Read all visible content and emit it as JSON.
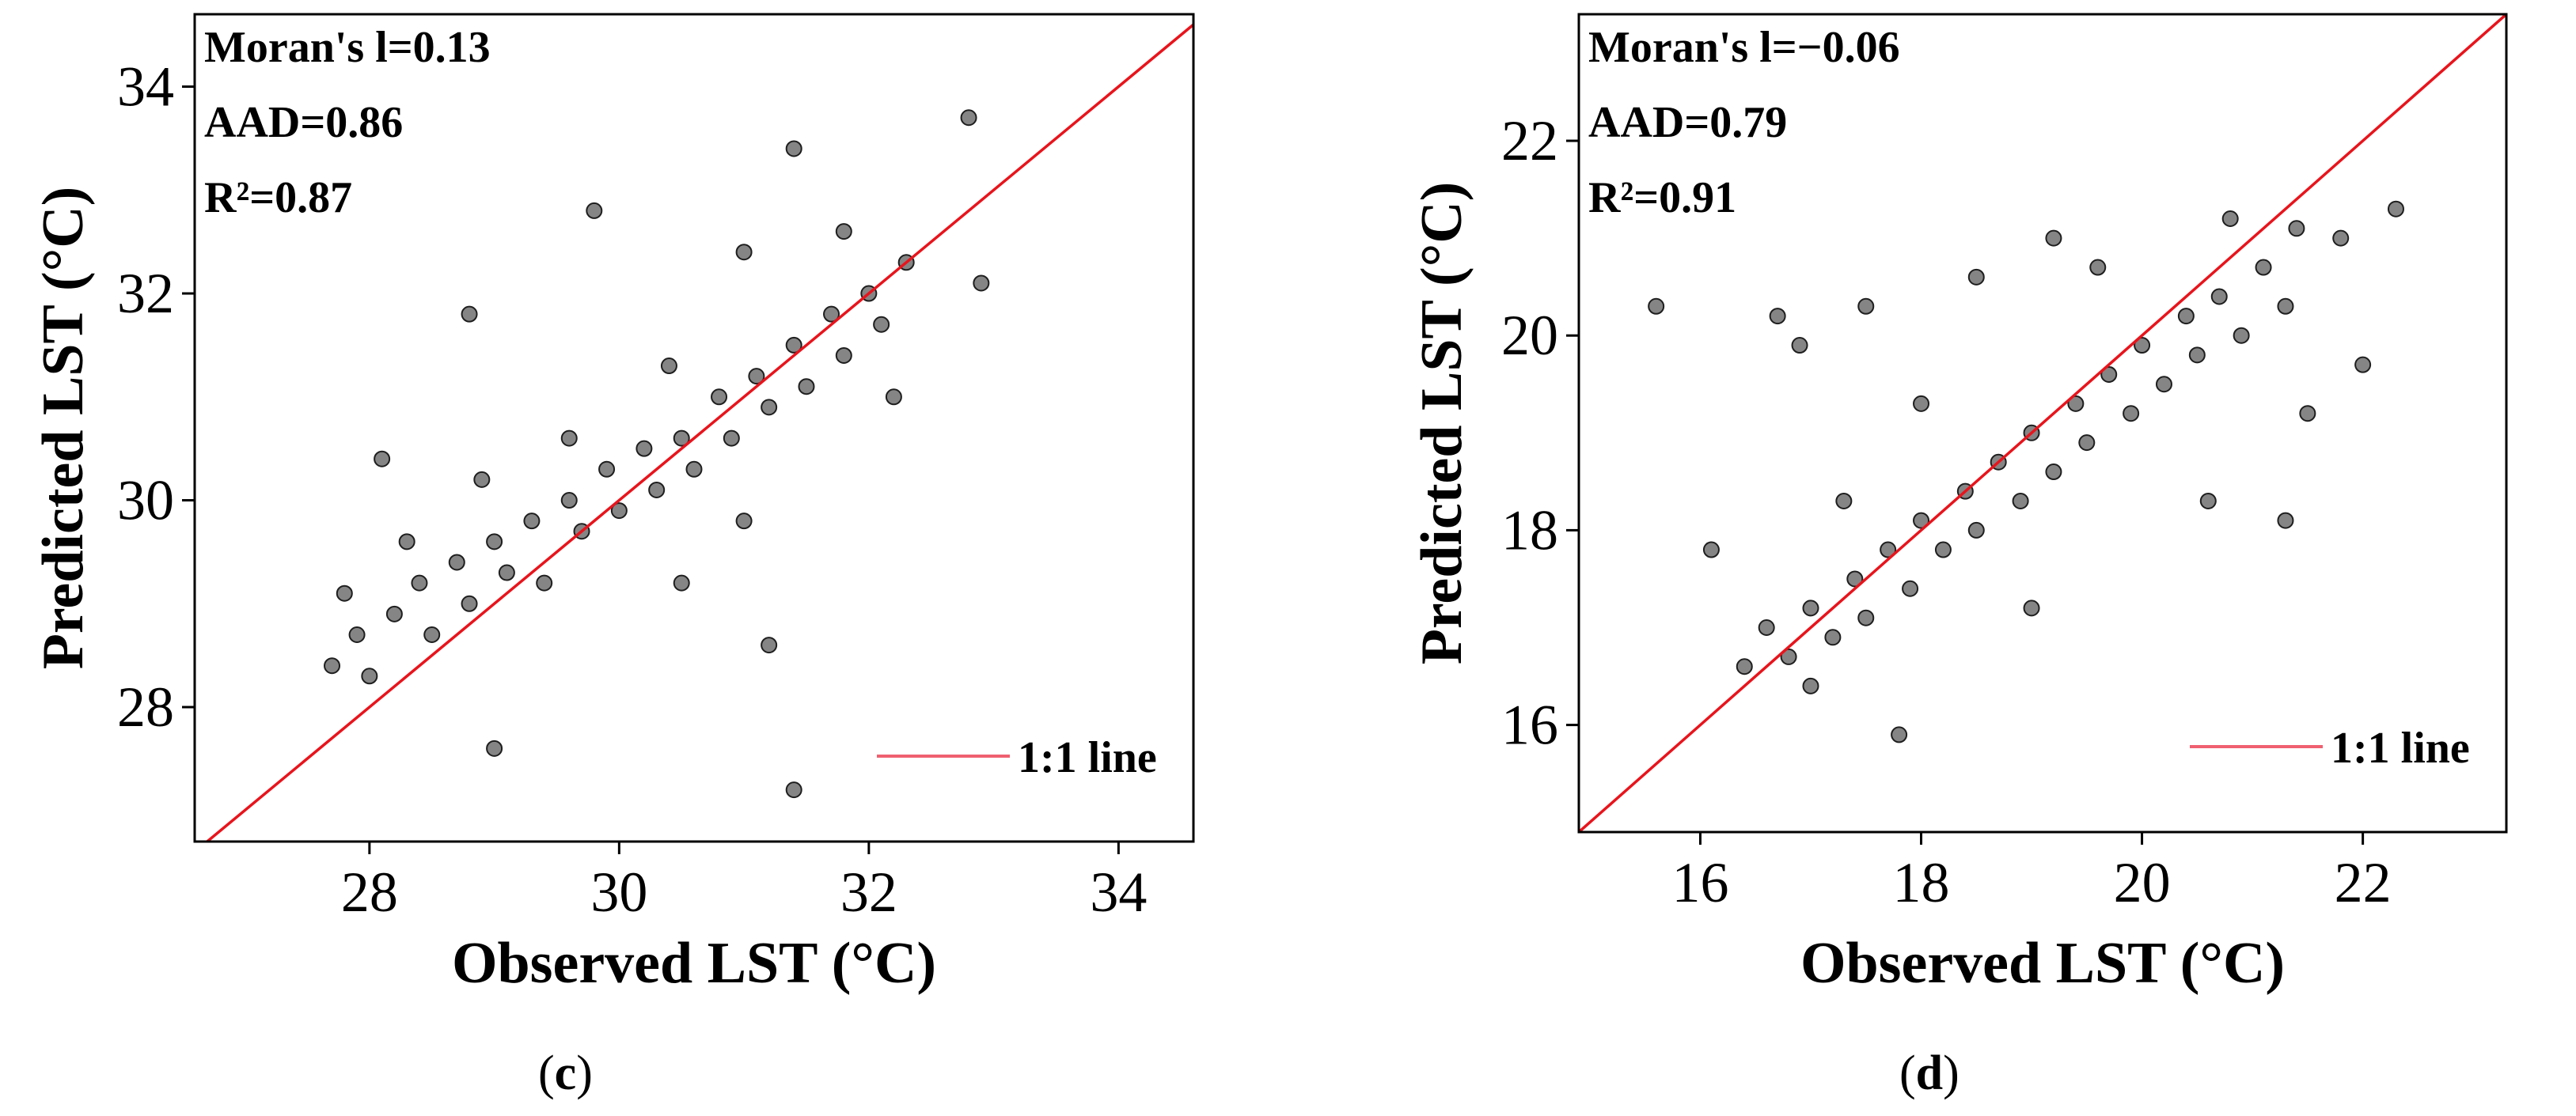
{
  "chart_data": [
    {
      "type": "scatter",
      "panel": "c",
      "xlabel": "Observed LST (°C)",
      "ylabel": "Predicted LST (°C)",
      "xlim": [
        26.6,
        34.6
      ],
      "ylim": [
        26.7,
        34.7
      ],
      "xticks": [
        28,
        30,
        32,
        34
      ],
      "yticks": [
        28,
        30,
        32,
        34
      ],
      "stats": [
        "Moran's l=0.13",
        "AAD=0.86",
        "R²=0.87"
      ],
      "legend": {
        "label": "1:1 line",
        "position": "bottom-right"
      },
      "grid": false,
      "reference_line": "1:1",
      "series": [
        {
          "points": [
            [
              27.7,
              28.4
            ],
            [
              27.9,
              28.7
            ],
            [
              28.0,
              28.3
            ],
            [
              28.2,
              28.9
            ],
            [
              28.4,
              29.2
            ],
            [
              28.5,
              28.7
            ],
            [
              28.7,
              29.4
            ],
            [
              28.8,
              29.0
            ],
            [
              29.0,
              29.6
            ],
            [
              29.1,
              29.3
            ],
            [
              29.3,
              29.8
            ],
            [
              29.4,
              29.2
            ],
            [
              29.6,
              30.0
            ],
            [
              29.7,
              29.7
            ],
            [
              29.9,
              30.3
            ],
            [
              30.0,
              29.9
            ],
            [
              30.2,
              30.5
            ],
            [
              30.3,
              30.1
            ],
            [
              30.5,
              30.6
            ],
            [
              30.6,
              30.3
            ],
            [
              30.8,
              31.0
            ],
            [
              30.9,
              30.6
            ],
            [
              31.1,
              31.2
            ],
            [
              31.2,
              30.9
            ],
            [
              31.4,
              31.5
            ],
            [
              31.5,
              31.1
            ],
            [
              31.7,
              31.8
            ],
            [
              31.8,
              31.4
            ],
            [
              32.0,
              32.0
            ],
            [
              32.1,
              31.7
            ],
            [
              32.3,
              32.3
            ],
            [
              31.8,
              32.6
            ],
            [
              31.4,
              33.4
            ],
            [
              32.8,
              33.7
            ],
            [
              32.9,
              32.1
            ],
            [
              31.4,
              27.2
            ],
            [
              31.2,
              28.6
            ],
            [
              29.0,
              27.6
            ],
            [
              28.1,
              30.4
            ],
            [
              28.8,
              31.8
            ],
            [
              29.8,
              32.8
            ],
            [
              31.0,
              32.4
            ],
            [
              30.4,
              31.3
            ],
            [
              29.6,
              30.6
            ],
            [
              28.9,
              30.2
            ],
            [
              28.3,
              29.6
            ],
            [
              27.8,
              29.1
            ],
            [
              30.5,
              29.2
            ],
            [
              31.0,
              29.8
            ],
            [
              32.2,
              31.0
            ]
          ]
        }
      ]
    },
    {
      "type": "scatter",
      "panel": "d",
      "xlabel": "Observed LST (°C)",
      "ylabel": "Predicted LST (°C)",
      "xlim": [
        14.9,
        23.3
      ],
      "ylim": [
        14.9,
        23.3
      ],
      "xticks": [
        16,
        18,
        20,
        22
      ],
      "yticks": [
        16,
        18,
        20,
        22
      ],
      "stats": [
        "Moran's l=−0.06",
        "AAD=0.79",
        "R²=0.91"
      ],
      "legend": {
        "label": "1:1 line",
        "position": "bottom-right"
      },
      "grid": false,
      "reference_line": "1:1",
      "series": [
        {
          "points": [
            [
              16.4,
              16.6
            ],
            [
              16.6,
              17.0
            ],
            [
              16.8,
              16.7
            ],
            [
              17.0,
              17.2
            ],
            [
              17.2,
              16.9
            ],
            [
              17.4,
              17.5
            ],
            [
              17.5,
              17.1
            ],
            [
              17.7,
              17.8
            ],
            [
              17.9,
              17.4
            ],
            [
              18.0,
              18.1
            ],
            [
              18.2,
              17.8
            ],
            [
              18.4,
              18.4
            ],
            [
              18.5,
              18.0
            ],
            [
              18.7,
              18.7
            ],
            [
              18.9,
              18.3
            ],
            [
              19.0,
              19.0
            ],
            [
              19.2,
              18.6
            ],
            [
              19.4,
              19.3
            ],
            [
              19.5,
              18.9
            ],
            [
              19.7,
              19.6
            ],
            [
              19.9,
              19.2
            ],
            [
              20.0,
              19.9
            ],
            [
              20.2,
              19.5
            ],
            [
              20.4,
              20.2
            ],
            [
              20.5,
              19.8
            ],
            [
              20.7,
              20.4
            ],
            [
              20.9,
              20.0
            ],
            [
              21.1,
              20.7
            ],
            [
              21.3,
              20.3
            ],
            [
              21.4,
              21.1
            ],
            [
              21.8,
              21.0
            ],
            [
              22.0,
              19.7
            ],
            [
              22.3,
              21.3
            ],
            [
              15.6,
              20.3
            ],
            [
              16.7,
              20.2
            ],
            [
              16.1,
              17.8
            ],
            [
              16.9,
              19.9
            ],
            [
              17.5,
              20.3
            ],
            [
              17.8,
              15.9
            ],
            [
              21.3,
              18.1
            ],
            [
              19.2,
              21.0
            ],
            [
              18.5,
              20.6
            ],
            [
              20.6,
              18.3
            ],
            [
              17.3,
              18.3
            ],
            [
              19.0,
              17.2
            ],
            [
              18.0,
              19.3
            ],
            [
              20.8,
              21.2
            ],
            [
              19.6,
              20.7
            ],
            [
              17.0,
              16.4
            ],
            [
              21.5,
              19.2
            ]
          ]
        }
      ]
    }
  ],
  "captions": {
    "c": {
      "open": "(",
      "tag": "c",
      "close": ")"
    },
    "d": {
      "open": "(",
      "tag": "d",
      "close": ")"
    }
  },
  "colors": {
    "line": "#e8141c",
    "legend_line": "#f06070",
    "point_fill": "#858585",
    "point_stroke": "#1e1e1e",
    "axis": "#000000"
  }
}
